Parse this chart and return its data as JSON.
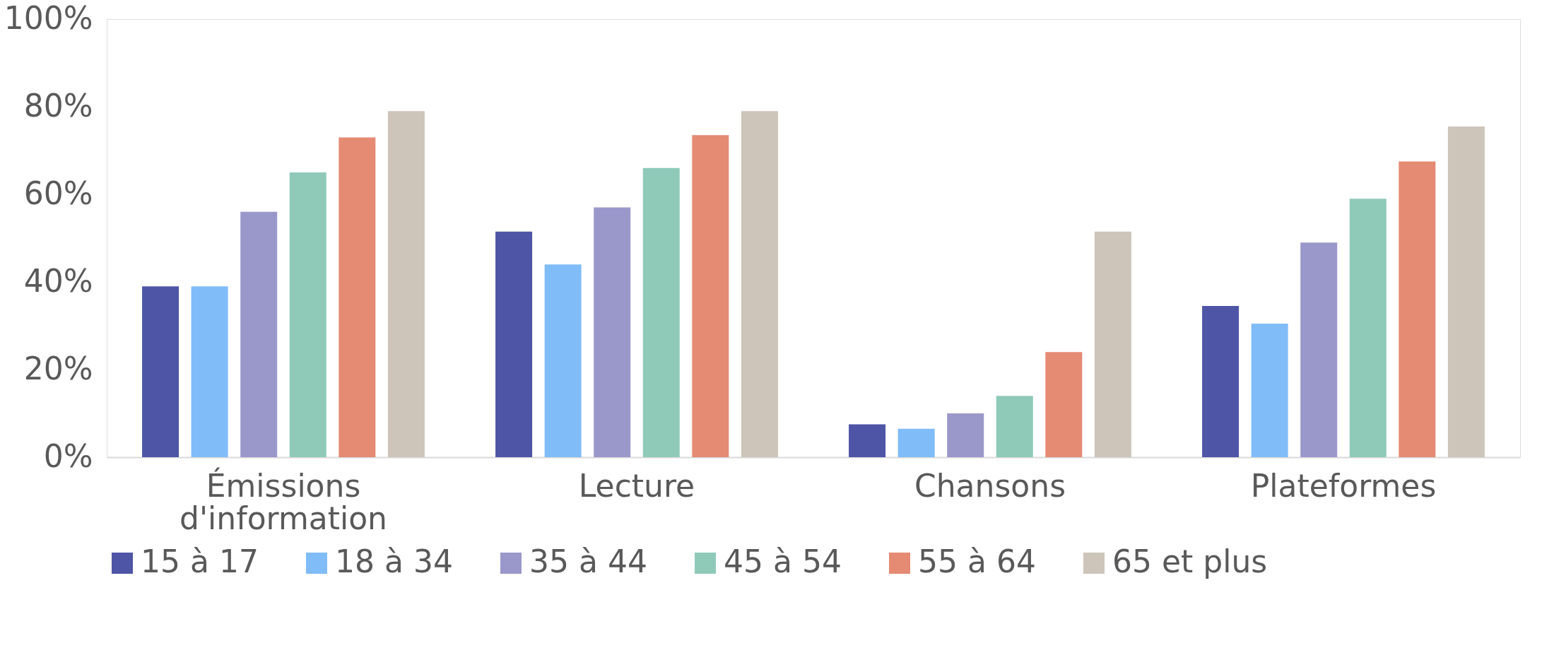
{
  "chart_data": {
    "type": "bar",
    "categories": [
      "Émissions d'information",
      "Lecture",
      "Chansons",
      "Plateformes"
    ],
    "series": [
      {
        "name": "15 à 17",
        "color": "#4e55a6",
        "values": [
          39,
          51.5,
          7.5,
          34.5
        ]
      },
      {
        "name": "18 à 34",
        "color": "#80bcf8",
        "values": [
          39,
          44,
          6.5,
          30.5
        ]
      },
      {
        "name": "35 à 44",
        "color": "#9a98ca",
        "values": [
          56,
          57,
          10,
          49
        ]
      },
      {
        "name": "45 à 54",
        "color": "#8fcab9",
        "values": [
          65,
          66,
          14,
          59
        ]
      },
      {
        "name": "55 à 64",
        "color": "#e58a73",
        "values": [
          73,
          73.5,
          24,
          67.5
        ]
      },
      {
        "name": "65 et plus",
        "color": "#cdc5b9",
        "values": [
          79,
          79,
          51.5,
          75.5
        ]
      }
    ],
    "ylim": [
      0,
      100
    ],
    "yticks": [
      {
        "value": 0,
        "label": "0%"
      },
      {
        "value": 20,
        "label": "20%"
      },
      {
        "value": 40,
        "label": "40%"
      },
      {
        "value": 60,
        "label": "60%"
      },
      {
        "value": 80,
        "label": "80%"
      },
      {
        "value": 100,
        "label": "100%"
      }
    ],
    "grid": false,
    "legend": "bottom"
  }
}
